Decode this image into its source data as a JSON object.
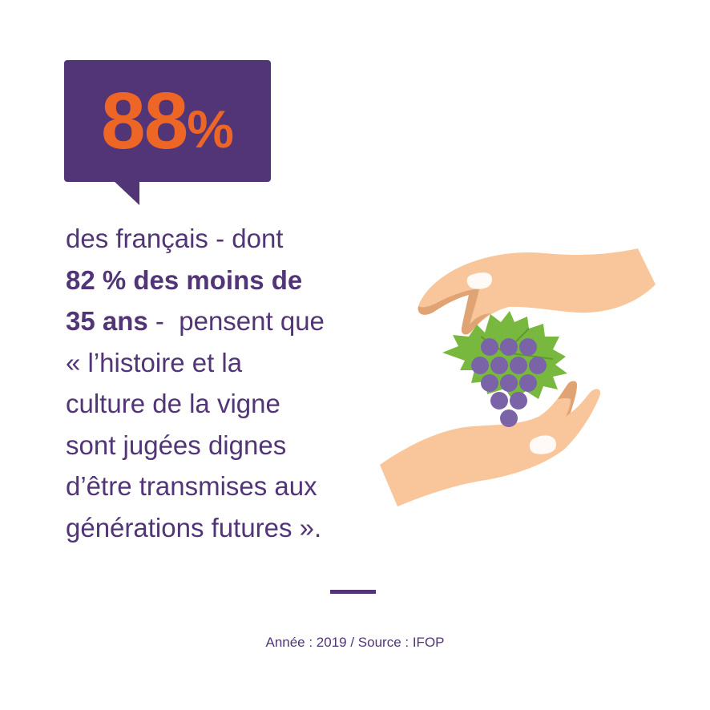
{
  "stat": {
    "number": "88",
    "percent": "%"
  },
  "body": {
    "line1": "des français - dont",
    "line2_bold": "82 % des moins de",
    "line3_bold": "35 ans",
    "line3_rest": " -  pensent que",
    "line4": "« l’histoire et la",
    "line5": "culture de la vigne",
    "line6": "sont jugées dignes",
    "line7": "d’être transmises aux",
    "line8": "générations futures »."
  },
  "source": "Année : 2019 / Source : IFOP",
  "illustration": {
    "icon": "hands-holding-grapes-icon"
  },
  "colors": {
    "purple": "#523577",
    "orange": "#EE6625",
    "skin": "#F8C69A",
    "skin_dark": "#E0A374",
    "leaf": "#79B83F",
    "grape": "#7A63A7"
  }
}
